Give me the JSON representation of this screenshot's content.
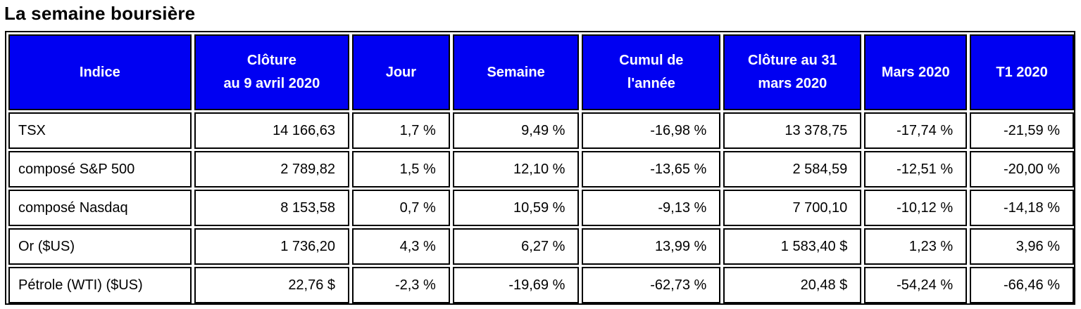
{
  "title": "La semaine boursière",
  "table": {
    "headers": [
      [
        "Indice"
      ],
      [
        "Clôture",
        "au 9 avril 2020"
      ],
      [
        "Jour"
      ],
      [
        "Semaine"
      ],
      [
        "Cumul de",
        "l'année"
      ],
      [
        "Clôture au 31",
        "mars 2020"
      ],
      [
        "Mars 2020"
      ],
      [
        "T1 2020"
      ]
    ],
    "rows": [
      [
        "TSX",
        "14 166,63",
        "1,7 %",
        "9,49 %",
        "-16,98 %",
        "13 378,75",
        "-17,74 %",
        "-21,59 %"
      ],
      [
        "composé S&P 500",
        "2 789,82",
        "1,5 %",
        "12,10 %",
        "-13,65 %",
        "2 584,59",
        "-12,51 %",
        "-20,00 %"
      ],
      [
        "composé Nasdaq",
        "8 153,58",
        "0,7 %",
        "10,59 %",
        "-9,13 %",
        "7 700,10",
        "-10,12 %",
        "-14,18 %"
      ],
      [
        "Or ($US)",
        "1 736,20",
        "4,3 %",
        "6,27 %",
        "13,99 %",
        "1 583,40 $",
        "1,23 %",
        "3,96 %"
      ],
      [
        "Pétrole (WTI) ($US)",
        "22,76 $",
        "-2,3 %",
        "-19,69 %",
        "-62,73 %",
        "20,48 $",
        "-54,24 %",
        "-66,46 %"
      ]
    ]
  },
  "colors": {
    "header_bg": "#0000f2",
    "header_text": "#ffffff"
  }
}
